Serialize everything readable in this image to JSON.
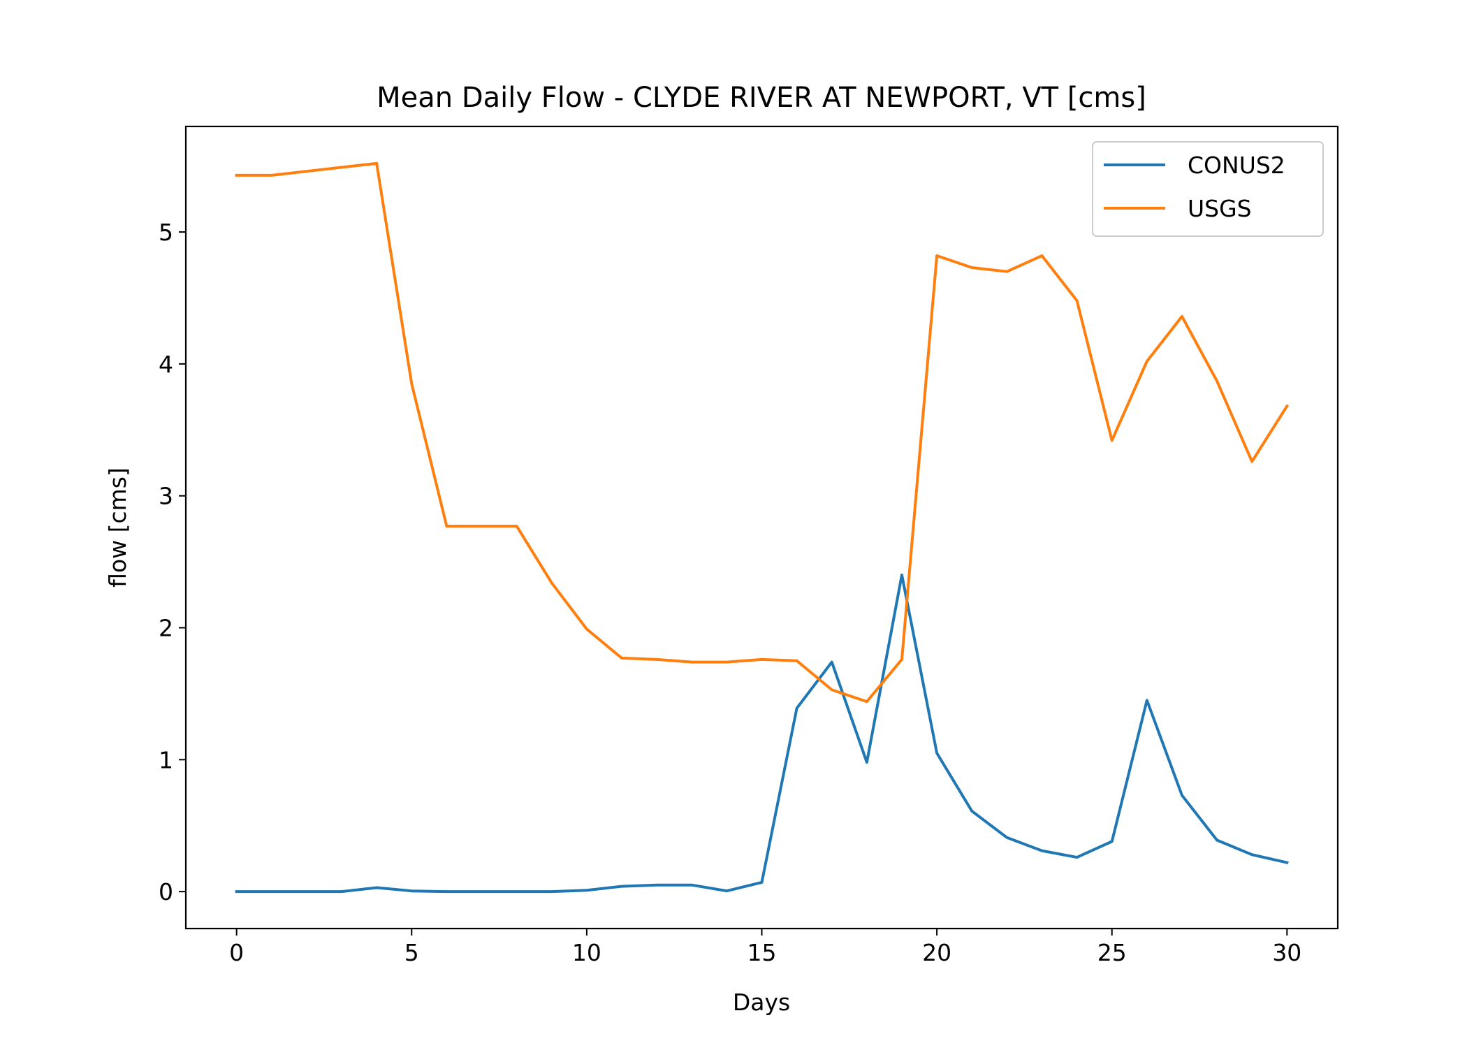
{
  "chart_data": {
    "type": "line",
    "title": "Mean Daily Flow - CLYDE RIVER AT NEWPORT, VT [cms]",
    "xlabel": "Days",
    "ylabel": "flow [cms]",
    "xlim": [
      -1.45,
      31.45
    ],
    "ylim": [
      -0.28,
      5.8
    ],
    "xticks": [
      0,
      5,
      10,
      15,
      20,
      25,
      30
    ],
    "yticks": [
      0,
      1,
      2,
      3,
      4,
      5
    ],
    "grid": false,
    "legend_position": "top-right",
    "x": [
      0,
      1,
      2,
      3,
      4,
      5,
      6,
      7,
      8,
      9,
      10,
      11,
      12,
      13,
      14,
      15,
      16,
      17,
      18,
      19,
      20,
      21,
      22,
      23,
      24,
      25,
      26,
      27,
      28,
      29,
      30
    ],
    "series": [
      {
        "name": "CONUS2",
        "color": "#1f77b4",
        "values": [
          0.0,
          0.0,
          0.0,
          0.0,
          0.03,
          0.005,
          0.0,
          0.0,
          0.0,
          0.0,
          0.01,
          0.04,
          0.05,
          0.05,
          0.005,
          0.07,
          1.39,
          1.74,
          0.98,
          2.4,
          1.05,
          0.61,
          0.41,
          0.31,
          0.26,
          0.38,
          1.45,
          0.73,
          0.39,
          0.28,
          0.22
        ]
      },
      {
        "name": "USGS",
        "color": "#ff7f0e",
        "values": [
          5.43,
          5.43,
          5.46,
          5.49,
          5.52,
          3.85,
          2.77,
          2.77,
          2.77,
          2.34,
          1.99,
          1.77,
          1.76,
          1.74,
          1.74,
          1.76,
          1.75,
          1.53,
          1.44,
          1.76,
          4.82,
          4.73,
          4.7,
          4.82,
          4.48,
          3.42,
          4.02,
          4.36,
          3.87,
          3.26,
          3.68
        ]
      }
    ]
  }
}
